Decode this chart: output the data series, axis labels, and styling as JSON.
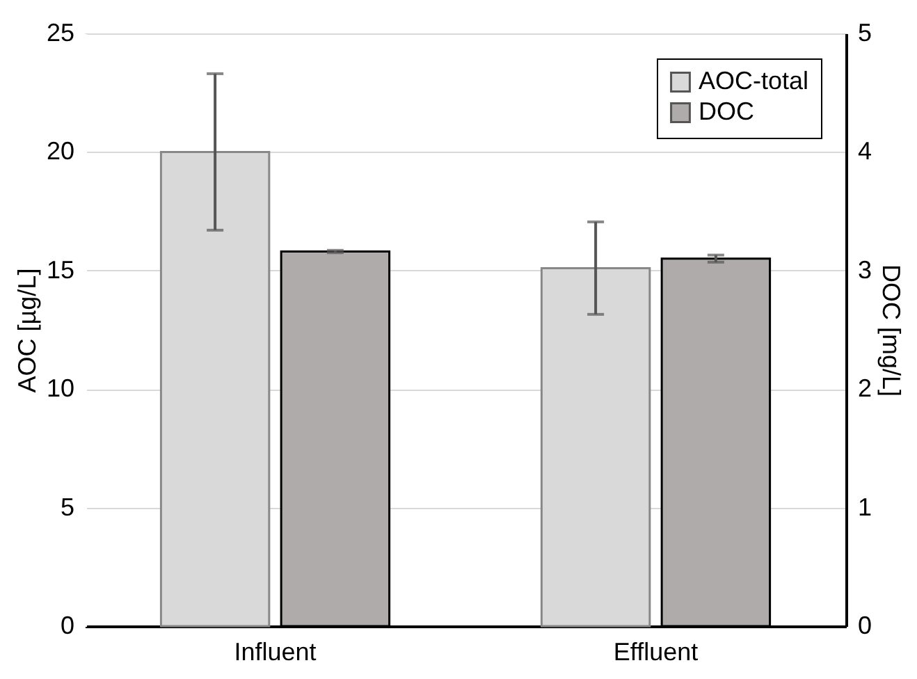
{
  "chart_data": {
    "type": "bar",
    "categories": [
      "Influent",
      "Effluent"
    ],
    "series": [
      {
        "name": "AOC-total",
        "color": "#d9d9d9",
        "values": [
          20.0,
          15.1
        ],
        "errors": [
          3.3,
          1.95
        ]
      },
      {
        "name": "DOC",
        "color": "#b0abab",
        "values": [
          3.16,
          3.1
        ],
        "errors": [
          0.01,
          0.03
        ],
        "axis": "y2"
      }
    ],
    "ylabel": "AOC [µg/L]",
    "y2label": "DOC [mg/L]",
    "ylim": [
      0,
      25
    ],
    "yticks": [
      0,
      5,
      10,
      15,
      20,
      25
    ],
    "y2lim": [
      0,
      5
    ],
    "y2ticks": [
      0,
      1,
      2,
      3,
      4,
      5
    ],
    "grid": "y",
    "legend": "top right"
  }
}
